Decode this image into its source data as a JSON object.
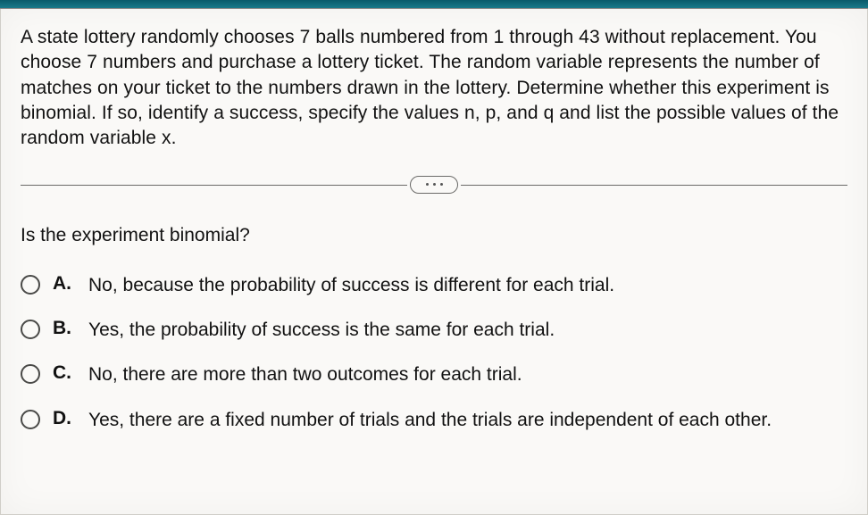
{
  "question": {
    "prompt": "A state lottery randomly chooses 7 balls numbered from 1 through 43 without replacement. You choose 7 numbers and purchase a lottery ticket. The random variable represents the number of matches on your ticket to the numbers drawn in the lottery. Determine whether this experiment is binomial. If so, identify a success, specify the values n, p, and q and list the possible values of the random variable x.",
    "sub_prompt": "Is the experiment binomial?",
    "options": [
      {
        "letter": "A.",
        "text": "No, because the probability of success is different for each trial."
      },
      {
        "letter": "B.",
        "text": "Yes, the probability of success is the same for each trial."
      },
      {
        "letter": "C.",
        "text": "No, there are more than two outcomes for each trial."
      },
      {
        "letter": "D.",
        "text": "Yes, there are a fixed number of trials and the trials are independent of each other."
      }
    ]
  },
  "style": {
    "background": "#faf9f7",
    "text_color": "#111111",
    "divider_color": "#6a6a68",
    "radio_border": "#4a4a48",
    "font_size_body": 21,
    "top_bar_color": "#1a7a8a"
  }
}
